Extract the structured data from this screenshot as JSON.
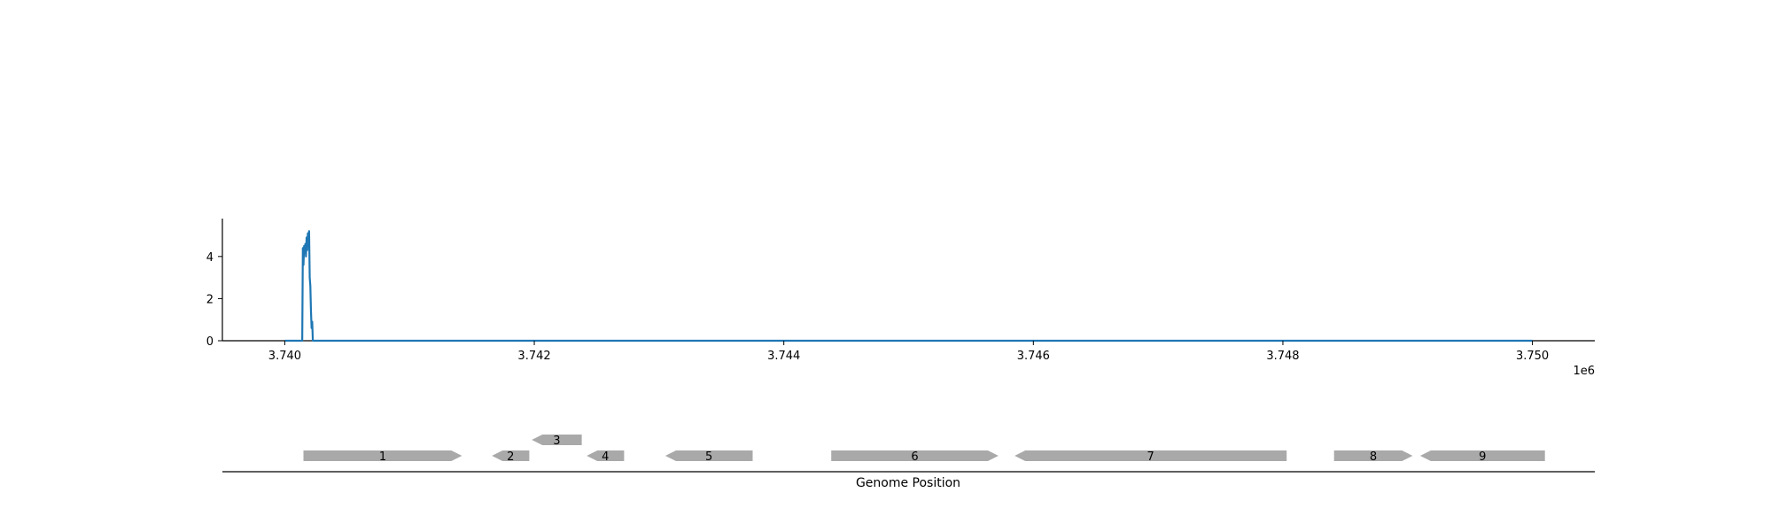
{
  "chart_data": [
    {
      "type": "line",
      "title": "",
      "xlabel": "",
      "ylabel": "",
      "offset_label": "1e6",
      "xlim": [
        3739500,
        3750500
      ],
      "ylim": [
        0,
        5.8
      ],
      "xticks": [
        3740000,
        3742000,
        3744000,
        3746000,
        3748000,
        3750000
      ],
      "xtick_labels": [
        "3.740",
        "3.742",
        "3.744",
        "3.746",
        "3.748",
        "3.750"
      ],
      "yticks": [
        0,
        2,
        4
      ],
      "ytick_labels": [
        "0",
        "2",
        "4"
      ],
      "grid": false,
      "line_color": "#1f77b4",
      "series": [
        {
          "x": [
            3740000,
            3740120,
            3740140,
            3740145,
            3740150,
            3740155,
            3740160,
            3740165,
            3740170,
            3740175,
            3740180,
            3740185,
            3740190,
            3740195,
            3740200,
            3740205,
            3740210,
            3740215,
            3740220,
            3740225,
            3750000
          ],
          "y": [
            0,
            0,
            0,
            4.4,
            3.6,
            4.5,
            4.2,
            4.6,
            4.0,
            4.9,
            4.3,
            5.1,
            4.6,
            5.2,
            3.0,
            2.6,
            1.4,
            0.6,
            0.9,
            0,
            0
          ]
        }
      ]
    },
    {
      "type": "gene_track",
      "xlabel": "Genome Position",
      "xlim": [
        3739500,
        3750500
      ],
      "gene_color": "#a9a9a9",
      "genes": [
        {
          "label": "1",
          "start": 3740150,
          "end": 3741420,
          "strand": "+",
          "row": 0
        },
        {
          "label": "2",
          "start": 3741660,
          "end": 3741960,
          "strand": "-",
          "row": 0
        },
        {
          "label": "3",
          "start": 3741980,
          "end": 3742380,
          "strand": "-",
          "row": 1
        },
        {
          "label": "4",
          "start": 3742420,
          "end": 3742720,
          "strand": "-",
          "row": 0
        },
        {
          "label": "5",
          "start": 3743050,
          "end": 3743750,
          "strand": "-",
          "row": 0
        },
        {
          "label": "6",
          "start": 3744380,
          "end": 3745720,
          "strand": "+",
          "row": 0
        },
        {
          "label": "7",
          "start": 3745850,
          "end": 3748030,
          "strand": "-",
          "row": 0
        },
        {
          "label": "8",
          "start": 3748410,
          "end": 3749040,
          "strand": "+",
          "row": 0
        },
        {
          "label": "9",
          "start": 3749100,
          "end": 3750100,
          "strand": "-",
          "row": 0
        }
      ]
    }
  ]
}
